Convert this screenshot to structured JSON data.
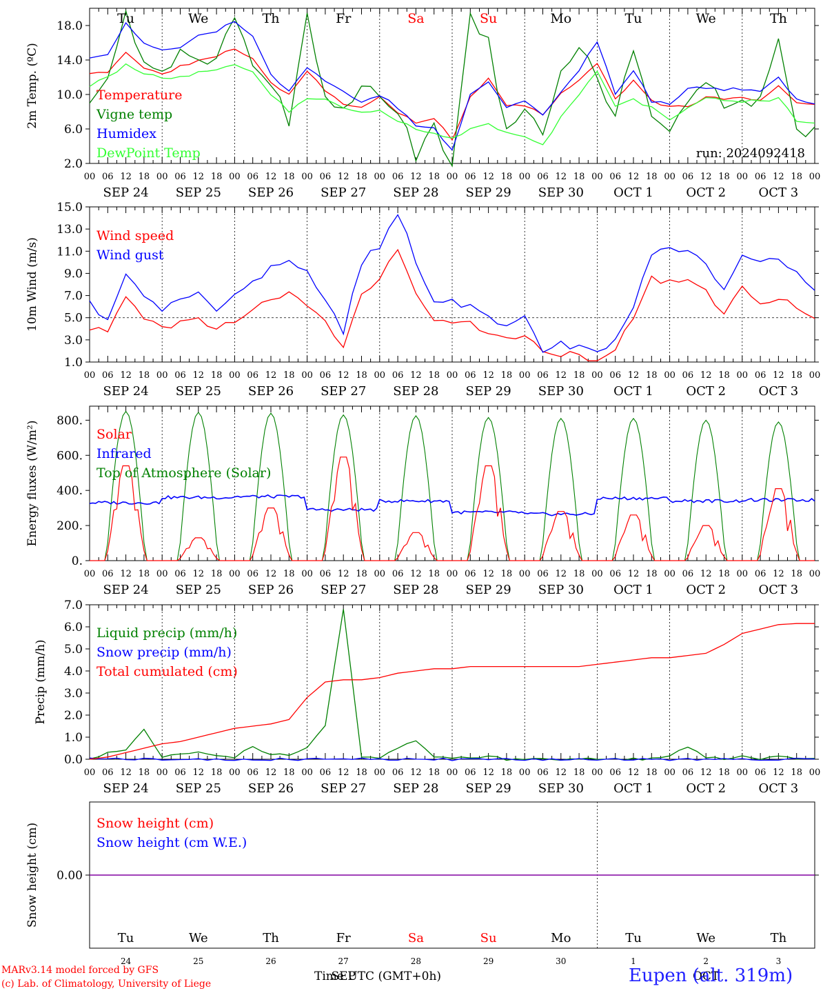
{
  "figure": {
    "run_label": "run: 2024092418",
    "footer_model": "MARv3.14 model forced by GFS",
    "footer_lab": "(c) Lab. of Climatology, University of Liege",
    "footer_xlabel": "Time UTC (GMT+0h)",
    "footer_station": "Eupen (alt. 319m)"
  },
  "hour_ticks": [
    "00",
    "06",
    "12",
    "18"
  ],
  "end_tick": "00",
  "day_labels": [
    "SEP 24",
    "SEP 25",
    "SEP 26",
    "SEP 27",
    "SEP 28",
    "SEP 29",
    "SEP 30",
    "OCT  1",
    "OCT  2",
    "OCT  3"
  ],
  "weekdays": [
    {
      "label": "Tu",
      "color": "#000000"
    },
    {
      "label": "We",
      "color": "#000000"
    },
    {
      "label": "Th",
      "color": "#000000"
    },
    {
      "label": "Fr",
      "color": "#000000"
    },
    {
      "label": "Sa",
      "color": "#ff0000"
    },
    {
      "label": "Su",
      "color": "#ff0000"
    },
    {
      "label": "Mo",
      "color": "#000000"
    },
    {
      "label": "Tu",
      "color": "#000000"
    },
    {
      "label": "We",
      "color": "#000000"
    },
    {
      "label": "Th",
      "color": "#000000"
    }
  ],
  "snow_day_numbers": [
    "24",
    "25",
    "26",
    "27",
    "28",
    "29",
    "30",
    "1",
    "2",
    "3"
  ],
  "snow_month_labels": [
    "SEP",
    "OCT"
  ],
  "chart_data": [
    {
      "type": "line",
      "id": "temperature",
      "ylabel": "2m Temp. (ºC)",
      "ylim": [
        2,
        20
      ],
      "yticks": [
        2,
        6,
        10,
        14,
        18
      ],
      "ytick_labels": [
        "2.0",
        "6.0",
        "10.0",
        "14.0",
        "18.0"
      ],
      "x_hours_from_start": [
        0,
        6,
        12,
        18,
        24,
        30,
        36,
        42,
        48,
        54,
        60,
        66,
        72,
        78,
        84,
        90,
        96,
        102,
        108,
        114,
        120,
        126,
        132,
        138,
        144,
        150,
        156,
        162,
        168,
        174,
        180,
        186,
        192,
        198,
        204,
        210,
        216,
        222,
        228,
        234,
        240
      ],
      "series": [
        {
          "name": "Temperature",
          "color": "#ff0000",
          "values": [
            12.6,
            12.5,
            15.0,
            13.0,
            12.5,
            13.2,
            13.8,
            14.4,
            15.4,
            14.2,
            11.5,
            10.0,
            12.8,
            10.5,
            9.0,
            8.4,
            9.6,
            8.0,
            6.6,
            7.2,
            4.8,
            9.8,
            11.8,
            8.6,
            8.8,
            7.5,
            10.0,
            11.8,
            13.6,
            9.5,
            11.5,
            9.2,
            8.6,
            8.7,
            9.6,
            9.5,
            9.5,
            9.4,
            10.9,
            9.1,
            8.8
          ]
        },
        {
          "name": "Vigne temp",
          "color": "#008000",
          "values": [
            9.5,
            11.5,
            19.5,
            13.0,
            12.0,
            15.5,
            13.8,
            14.0,
            19.0,
            14.0,
            11.0,
            7.0,
            19.5,
            9.0,
            8.0,
            11.5,
            10.0,
            8.0,
            3.0,
            6.5,
            2.0,
            19.0,
            16.0,
            6.0,
            9.0,
            5.5,
            13.0,
            16.0,
            12.5,
            7.0,
            15.5,
            7.0,
            5.5,
            9.0,
            12.0,
            9.0,
            9.5,
            9.0,
            16.5,
            5.5,
            5.5
          ]
        },
        {
          "name": "Humidex",
          "color": "#0000ff",
          "values": [
            14.4,
            14.6,
            18.2,
            15.8,
            15.2,
            15.6,
            16.8,
            17.4,
            18.4,
            16.8,
            12.2,
            10.4,
            13.0,
            11.5,
            10.2,
            9.0,
            10.0,
            8.4,
            6.4,
            6.2,
            3.5,
            10.0,
            11.6,
            8.6,
            9.2,
            7.6,
            10.3,
            12.8,
            16.2,
            10.0,
            12.8,
            9.2,
            9.0,
            10.6,
            10.8,
            10.6,
            10.6,
            10.4,
            12.0,
            9.4,
            8.8
          ]
        },
        {
          "name": "DewPoint Temp",
          "color": "#33ff33",
          "values": [
            11.0,
            12.0,
            13.5,
            12.5,
            12.0,
            12.0,
            12.5,
            13.0,
            13.5,
            12.5,
            10.0,
            8.0,
            9.5,
            9.5,
            8.5,
            7.8,
            8.0,
            7.0,
            6.0,
            5.5,
            5.0,
            6.0,
            6.5,
            5.5,
            5.0,
            4.0,
            7.5,
            10.0,
            12.8,
            8.5,
            9.4,
            8.5,
            7.0,
            8.5,
            9.5,
            9.4,
            9.2,
            9.2,
            9.5,
            7.0,
            6.8
          ]
        }
      ]
    },
    {
      "type": "line",
      "id": "wind",
      "ylabel": "10m Wind (m/s)",
      "ylim": [
        1,
        15
      ],
      "yticks": [
        1,
        3,
        5,
        7,
        9,
        11,
        13,
        15
      ],
      "ytick_labels": [
        "1.0",
        "3.0",
        "5.0",
        "7.0",
        "9.0",
        "11.0",
        "13.0",
        "15.0"
      ],
      "reference_line": 5.0,
      "x_hours_from_start": [
        0,
        6,
        12,
        18,
        24,
        30,
        36,
        42,
        48,
        54,
        60,
        66,
        72,
        78,
        84,
        90,
        96,
        102,
        108,
        114,
        120,
        126,
        132,
        138,
        144,
        150,
        156,
        162,
        168,
        174,
        180,
        186,
        192,
        198,
        204,
        210,
        216,
        222,
        228,
        234,
        240
      ],
      "series": [
        {
          "name": "Wind speed",
          "color": "#ff0000",
          "values": [
            4.2,
            3.6,
            6.6,
            5.2,
            4.0,
            4.6,
            4.8,
            4.0,
            4.6,
            5.8,
            6.8,
            7.2,
            6.4,
            4.5,
            2.5,
            7.2,
            8.5,
            11.1,
            7.4,
            5.0,
            4.8,
            4.5,
            3.5,
            3.2,
            3.5,
            1.6,
            1.8,
            1.6,
            1.2,
            2.2,
            5.0,
            8.5,
            8.4,
            8.6,
            7.2,
            5.0,
            7.8,
            6.2,
            6.6,
            6.0,
            5.0
          ]
        },
        {
          "name": "Wind gust",
          "color": "#0000ff",
          "values": [
            6.2,
            5.0,
            8.8,
            6.8,
            5.5,
            6.8,
            7.0,
            5.4,
            6.8,
            8.0,
            9.6,
            10.2,
            9.2,
            6.6,
            3.8,
            10.0,
            11.5,
            14.6,
            10.2,
            6.6,
            6.4,
            6.0,
            5.0,
            4.5,
            5.0,
            2.2,
            2.6,
            2.4,
            1.8,
            3.0,
            6.2,
            10.8,
            11.0,
            11.2,
            9.6,
            7.4,
            10.6,
            9.8,
            10.4,
            9.0,
            7.4
          ]
        }
      ]
    },
    {
      "type": "line",
      "id": "energy",
      "ylabel": "Energy fluxes (W/m²)",
      "ylim": [
        0,
        880
      ],
      "yticks": [
        0,
        200,
        400,
        600,
        800
      ],
      "ytick_labels": [
        "0.",
        "200.",
        "400.",
        "600.",
        "800."
      ],
      "series": [
        {
          "name": "Solar",
          "color": "#ff0000",
          "daily_peak": [
            540,
            130,
            300,
            590,
            160,
            540,
            280,
            260,
            200,
            410
          ]
        },
        {
          "name": "Infrared",
          "color": "#0000ff",
          "daily_level": [
            330,
            360,
            365,
            290,
            340,
            275,
            265,
            355,
            340,
            345
          ]
        },
        {
          "name": "Top of Atmosphere (Solar)",
          "color": "#008000",
          "daily_peak": [
            850,
            845,
            840,
            830,
            825,
            815,
            810,
            810,
            800,
            790
          ]
        }
      ]
    },
    {
      "type": "line",
      "id": "precip",
      "ylabel": "Precip (mm/h)",
      "ylim": [
        0,
        7
      ],
      "yticks": [
        0,
        1,
        2,
        3,
        4,
        5,
        6,
        7
      ],
      "ytick_labels": [
        "0.0",
        "1.0",
        "2.0",
        "3.0",
        "4.0",
        "5.0",
        "6.0",
        "7.0"
      ],
      "x_hours_from_start": [
        0,
        6,
        12,
        18,
        24,
        30,
        36,
        42,
        48,
        54,
        60,
        66,
        72,
        78,
        84,
        90,
        96,
        102,
        108,
        114,
        120,
        126,
        132,
        138,
        144,
        150,
        156,
        162,
        168,
        174,
        180,
        186,
        192,
        198,
        204,
        210,
        216,
        222,
        228,
        234,
        240
      ],
      "series": [
        {
          "name": "Liquid precip (mm/h)",
          "color": "#008000",
          "values": [
            0.0,
            0.3,
            0.4,
            1.3,
            0.1,
            0.2,
            0.3,
            0.2,
            0.1,
            0.6,
            0.2,
            0.2,
            0.5,
            1.5,
            6.8,
            0.1,
            0.0,
            0.5,
            0.8,
            0.1,
            0.1,
            0.0,
            0.2,
            0.0,
            0.0,
            0.0,
            0.0,
            0.0,
            0.0,
            0.0,
            0.0,
            0.0,
            0.1,
            0.6,
            0.1,
            0.0,
            0.2,
            0.0,
            0.2,
            0.0,
            0.0
          ]
        },
        {
          "name": "Snow precip (mm/h)",
          "color": "#0000ff",
          "values": [
            0.0,
            0.0,
            0.0,
            0.0,
            0.0,
            0.0,
            0.0,
            0.0,
            0.0,
            0.0,
            0.0,
            0.0,
            0.0,
            0.0,
            0.0,
            0.0,
            0.0,
            0.0,
            0.0,
            0.0,
            0.0,
            0.0,
            0.0,
            0.0,
            0.0,
            0.0,
            0.0,
            0.0,
            0.0,
            0.0,
            0.0,
            0.0,
            0.0,
            0.0,
            0.0,
            0.0,
            0.0,
            0.0,
            0.0,
            0.0,
            0.0
          ]
        },
        {
          "name": "Total cumulated (cm)",
          "color": "#ff0000",
          "values": [
            0.0,
            0.1,
            0.3,
            0.5,
            0.7,
            0.8,
            1.0,
            1.2,
            1.4,
            1.5,
            1.6,
            1.8,
            2.8,
            3.5,
            3.6,
            3.6,
            3.7,
            3.9,
            4.0,
            4.1,
            4.1,
            4.2,
            4.2,
            4.2,
            4.2,
            4.2,
            4.2,
            4.2,
            4.3,
            4.4,
            4.5,
            4.6,
            4.6,
            4.7,
            4.8,
            5.2,
            5.7,
            5.9,
            6.1,
            6.15,
            6.15
          ]
        }
      ]
    },
    {
      "type": "line",
      "id": "snow",
      "ylabel": "Snow height (cm)",
      "yticks": [
        0
      ],
      "ytick_labels": [
        "0.00"
      ],
      "series": [
        {
          "name": "Snow height (cm)",
          "color": "#ff0000",
          "values": [
            0,
            0
          ]
        },
        {
          "name": "Snow height (cm W.E.)",
          "color": "#0000ff",
          "values": [
            0,
            0
          ]
        }
      ]
    }
  ]
}
